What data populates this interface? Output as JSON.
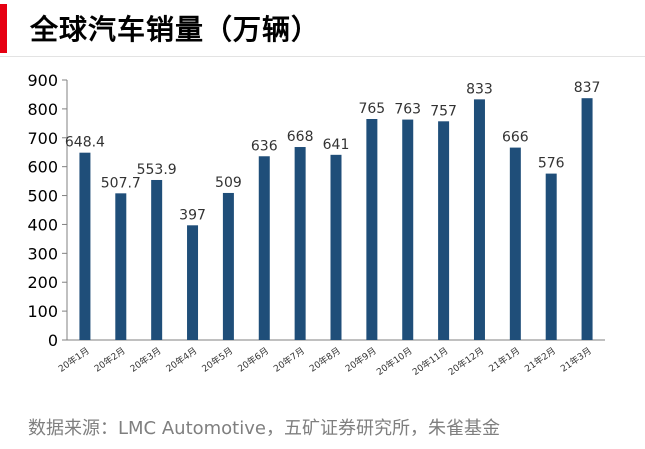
{
  "header": {
    "title": "全球汽车销量（万辆）"
  },
  "chart_data": {
    "type": "bar",
    "title": "全球汽车销量（万辆）",
    "categories": [
      "20年1月",
      "20年2月",
      "20年3月",
      "20年4月",
      "20年5月",
      "20年6月",
      "20年7月",
      "20年8月",
      "20年9月",
      "20年10月",
      "20年11月",
      "20年12月",
      "21年1月",
      "21年2月",
      "21年3月"
    ],
    "values": [
      648.4,
      507.7,
      553.9,
      397,
      509,
      636,
      668,
      641,
      765,
      763,
      757,
      833,
      666,
      576,
      837
    ],
    "value_labels": [
      "648.4",
      "507.7",
      "553.9",
      "397",
      "509",
      "636",
      "668",
      "641",
      "765",
      "763",
      "757",
      "833",
      "666",
      "576",
      "837"
    ],
    "ylim": [
      0,
      900
    ],
    "yticks": [
      0,
      100,
      200,
      300,
      400,
      500,
      600,
      700,
      800,
      900
    ],
    "xlabel": "",
    "ylabel": "",
    "grid": false,
    "bar_color": "#1f4e79"
  },
  "source": "数据来源：LMC Automotive，五矿证券研究所，朱雀基金"
}
